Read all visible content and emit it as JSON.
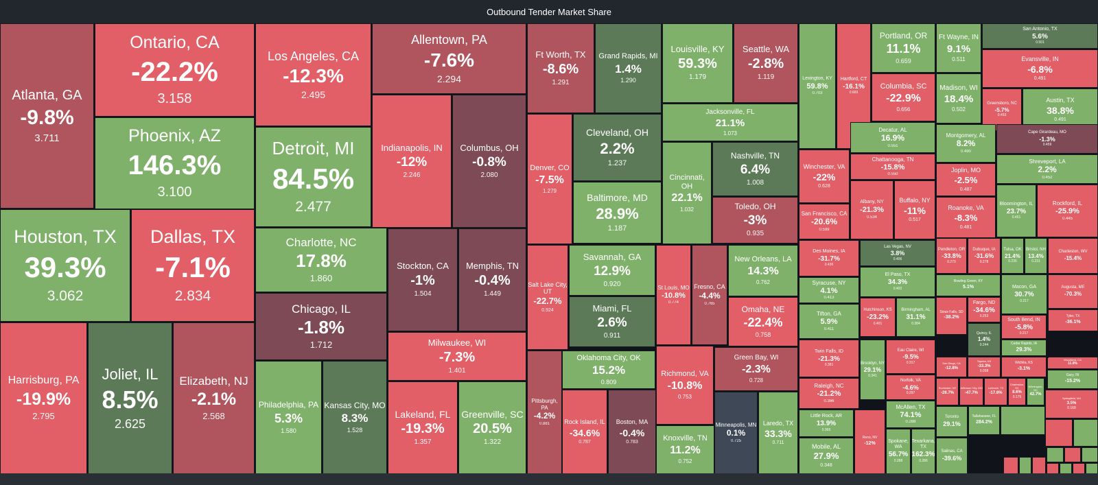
{
  "title": "Outbound Tender Market Share",
  "colors": {
    "green": "#7fb16b",
    "red": "#e25f67",
    "darkred": "#b0545d",
    "maroon": "#7d4a56",
    "darkgreen": "#5d7a58",
    "grayblue": "#3e4856"
  },
  "chart_data": {
    "type": "treemap",
    "title": "Outbound Tender Market Share",
    "tiles": [
      {
        "name": "Atlanta, GA",
        "change": "-9.8%",
        "value": "3.711"
      },
      {
        "name": "Ontario, CA",
        "change": "-22.2%",
        "value": "3.158"
      },
      {
        "name": "Phoenix, AZ",
        "change": "146.3%",
        "value": "3.100"
      },
      {
        "name": "Houston, TX",
        "change": "39.3%",
        "value": "3.062"
      },
      {
        "name": "Dallas, TX",
        "change": "-7.1%",
        "value": "2.834"
      },
      {
        "name": "Harrisburg, PA",
        "change": "-19.9%",
        "value": "2.795"
      },
      {
        "name": "Joliet, IL",
        "change": "8.5%",
        "value": "2.625"
      },
      {
        "name": "Elizabeth, NJ",
        "change": "-2.1%",
        "value": "2.568"
      },
      {
        "name": "Los Angeles, CA",
        "change": "-12.3%",
        "value": "2.495"
      },
      {
        "name": "Detroit, MI",
        "change": "84.5%",
        "value": "2.477"
      },
      {
        "name": "Charlotte, NC",
        "change": "17.8%",
        "value": "1.860"
      },
      {
        "name": "Chicago, IL",
        "change": "-1.8%",
        "value": "1.712"
      },
      {
        "name": "Philadelphia, PA",
        "change": "5.3%",
        "value": "1.580"
      },
      {
        "name": "Kansas City, MO",
        "change": "8.3%",
        "value": "1.528"
      },
      {
        "name": "Allentown, PA",
        "change": "-7.6%",
        "value": "2.294"
      },
      {
        "name": "Indianapolis, IN",
        "change": "-12%",
        "value": "2.246"
      },
      {
        "name": "Columbus, OH",
        "change": "-0.8%",
        "value": "2.080"
      },
      {
        "name": "Stockton, CA",
        "change": "-1%",
        "value": "1.504"
      },
      {
        "name": "Memphis, TN",
        "change": "-0.4%",
        "value": "1.449"
      },
      {
        "name": "Milwaukee, WI",
        "change": "-7.3%",
        "value": "1.401"
      },
      {
        "name": "Lakeland, FL",
        "change": "-19.3%",
        "value": "1.357"
      },
      {
        "name": "Greenville, SC",
        "change": "20.5%",
        "value": "1.322"
      },
      {
        "name": "Ft Worth, TX",
        "change": "-8.6%",
        "value": "1.291"
      },
      {
        "name": "Grand Rapids, MI",
        "change": "1.4%",
        "value": "1.290"
      },
      {
        "name": "Louisville, KY",
        "change": "59.3%",
        "value": "1.179"
      },
      {
        "name": "Seattle, WA",
        "change": "-2.8%",
        "value": "1.119"
      },
      {
        "name": "Jacksonville, FL",
        "change": "21.1%",
        "value": "1.073"
      },
      {
        "name": "Denver, CO",
        "change": "-7.5%",
        "value": "1.279"
      },
      {
        "name": "Cleveland, OH",
        "change": "2.2%",
        "value": "1.237"
      },
      {
        "name": "Baltimore, MD",
        "change": "28.9%",
        "value": "1.187"
      },
      {
        "name": "Cincinnati, OH",
        "change": "22.1%",
        "value": "1.032"
      },
      {
        "name": "Nashville, TN",
        "change": "6.4%",
        "value": "1.008"
      },
      {
        "name": "Toledo, OH",
        "change": "-3%",
        "value": "0.935"
      },
      {
        "name": "Salt Lake City, UT",
        "change": "-22.7%",
        "value": "0.924"
      },
      {
        "name": "Savannah, GA",
        "change": "12.9%",
        "value": "0.920"
      },
      {
        "name": "Miami, FL",
        "change": "2.6%",
        "value": "0.911"
      },
      {
        "name": "St Louis, MO",
        "change": "-10.8%",
        "value": "0.774"
      },
      {
        "name": "Fresno, CA",
        "change": "-4.4%",
        "value": "0.765"
      },
      {
        "name": "New Orleans, LA",
        "change": "14.3%",
        "value": "0.762"
      },
      {
        "name": "Omaha, NE",
        "change": "-22.4%",
        "value": "0.758"
      },
      {
        "name": "Oklahoma City, OK",
        "change": "15.2%",
        "value": "0.809"
      },
      {
        "name": "Richmond, VA",
        "change": "-10.8%",
        "value": "0.753"
      },
      {
        "name": "Green Bay, WI",
        "change": "-2.3%",
        "value": "0.728"
      },
      {
        "name": "Pittsburgh, PA",
        "change": "-4.2%",
        "value": "0.881"
      },
      {
        "name": "Rock Island, IL",
        "change": "-34.6%",
        "value": "0.787"
      },
      {
        "name": "Boston, MA",
        "change": "-0.4%",
        "value": "0.783"
      },
      {
        "name": "Knoxville, TN",
        "change": "11.2%",
        "value": "0.752"
      },
      {
        "name": "Minneapolis, MN",
        "change": "0.1%",
        "value": "0.725"
      },
      {
        "name": "Laredo, TX",
        "change": "33.3%",
        "value": "0.711"
      },
      {
        "name": "Lexington, KY",
        "change": "59.8%",
        "value": "0.703"
      },
      {
        "name": "Hartford, CT",
        "change": "-16.1%",
        "value": "0.669"
      },
      {
        "name": "Portland, OR",
        "change": "11.1%",
        "value": "0.659"
      },
      {
        "name": "Columbia, SC",
        "change": "-22.9%",
        "value": "0.656"
      },
      {
        "name": "Ft Wayne, IN",
        "change": "9.1%",
        "value": "0.511"
      },
      {
        "name": "San Antonio, TX",
        "change": "5.6%",
        "value": "0.501"
      },
      {
        "name": "Evansville, IN",
        "change": "-6.8%",
        "value": "0.491"
      },
      {
        "name": "Madison, WI",
        "change": "18.4%",
        "value": "0.502"
      },
      {
        "name": "Greensboro, NC",
        "change": "-5.7%",
        "value": "0.493"
      },
      {
        "name": "Austin, TX",
        "change": "38.8%",
        "value": "0.491"
      },
      {
        "name": "Winchester, VA",
        "change": "-22%",
        "value": "0.628"
      },
      {
        "name": "Decatur, AL",
        "change": "16.9%",
        "value": "0.551"
      },
      {
        "name": "Chattanooga, TN",
        "change": "-15.8%",
        "value": "0.550"
      },
      {
        "name": "Montgomery, AL",
        "change": "8.2%",
        "value": "0.490"
      },
      {
        "name": "Cape Girardeau, MO",
        "change": "-1.3%",
        "value": "0.459"
      },
      {
        "name": "Shreveport, LA",
        "change": "2.2%",
        "value": "0.452"
      },
      {
        "name": "San Francisco, CA",
        "change": "-20.6%",
        "value": "0.599"
      },
      {
        "name": "Albany, NY",
        "change": "-21.3%",
        "value": "0.534"
      },
      {
        "name": "Buffalo, NY",
        "change": "-11%",
        "value": "0.517"
      },
      {
        "name": "Joplin, MO",
        "change": "-2.5%",
        "value": "0.487"
      },
      {
        "name": "Roanoke, VA",
        "change": "-8.3%",
        "value": "0.481"
      },
      {
        "name": "Bloomington, IL",
        "change": "23.7%",
        "value": "0.451"
      },
      {
        "name": "Rockford, IL",
        "change": "-25.9%",
        "value": "0.445"
      },
      {
        "name": "Des Moines, IA",
        "change": "-31.7%",
        "value": "0.436"
      },
      {
        "name": "Las Vegas, NV",
        "change": "3.8%",
        "value": "0.406"
      },
      {
        "name": "El Paso, TX",
        "change": "34.3%",
        "value": "0.402"
      },
      {
        "name": "Syracuse, NY",
        "change": "4.1%",
        "value": "0.413"
      },
      {
        "name": "Hutchinson, KS",
        "change": "-23.2%",
        "value": "0.401"
      },
      {
        "name": "Birmingham, AL",
        "change": "31.1%",
        "value": "0.384"
      },
      {
        "name": "Tifton, GA",
        "change": "5.9%",
        "value": "0.411"
      },
      {
        "name": "Pendleton, OR",
        "change": "-33.8%",
        "value": "0.279"
      },
      {
        "name": "Dubuque, IA",
        "change": "-31.6%",
        "value": "0.278"
      },
      {
        "name": "Tulsa, OK",
        "change": "21.4%",
        "value": "0.235"
      },
      {
        "name": "Bristol, NH",
        "change": "13.4%",
        "value": "0.231"
      },
      {
        "name": "Charleston, WV",
        "change": "-15.4%",
        "value": ""
      },
      {
        "name": "Bowling Green, KY",
        "change": "5.1%",
        "value": ""
      },
      {
        "name": "Macon, GA",
        "change": "30.7%",
        "value": "0.217"
      },
      {
        "name": "Augusta, ME",
        "change": "-70.3%",
        "value": ""
      },
      {
        "name": "Twin Falls, ID",
        "change": "-21.3%",
        "value": "0.381"
      },
      {
        "name": "Brooklyn, NY",
        "change": "29.1%",
        "value": "0.341"
      },
      {
        "name": "Eau Claire, WI",
        "change": "-9.5%",
        "value": "0.317"
      },
      {
        "name": "Raleigh, NC",
        "change": "-21.2%",
        "value": "0.366"
      },
      {
        "name": "Norfolk, VA",
        "change": "-4.6%",
        "value": "0.297"
      },
      {
        "name": "Sioux Falls, SD",
        "change": "-38.2%",
        "value": ""
      },
      {
        "name": "Fargo, ND",
        "change": "-34.6%",
        "value": "0.253"
      },
      {
        "name": "Tyler, TX",
        "change": "-36.1%",
        "value": ""
      },
      {
        "name": "Quincy, IL",
        "change": "1.4%",
        "value": "0.244"
      },
      {
        "name": "South Bend, IN",
        "change": "-5.8%",
        "value": "0.217"
      },
      {
        "name": "Cedar Rapids, IA",
        "change": "29.3%",
        "value": ""
      },
      {
        "name": "Little Rock, AR",
        "change": "13.9%",
        "value": "0.365"
      },
      {
        "name": "McAllen, TX",
        "change": "74.1%",
        "value": "0.288"
      },
      {
        "name": "Mobile, AL",
        "change": "27.9%",
        "value": "0.348"
      },
      {
        "name": "Reno, NV",
        "change": "-12%",
        "value": ""
      },
      {
        "name": "Spokane, WA",
        "change": "56.7%",
        "value": "0.288"
      },
      {
        "name": "Texarkana, TX",
        "change": "162.3%",
        "value": "0.286"
      },
      {
        "name": "San Diego, CA",
        "change": "-12.8%",
        "value": ""
      },
      {
        "name": "Topeka, KS",
        "change": "-33.3%",
        "value": "0.058"
      },
      {
        "name": "Wichita, KS",
        "change": "-3.1%",
        "value": ""
      },
      {
        "name": "Woodland, CA",
        "change": "11.9%",
        "value": ""
      },
      {
        "name": "Gary, IN",
        "change": "-15.2%",
        "value": ""
      },
      {
        "name": "Rochester, NY",
        "change": "-26.7%",
        "value": ""
      },
      {
        "name": "Jefferson City, MO",
        "change": "-47.7%",
        "value": ""
      },
      {
        "name": "Lubbock, TX",
        "change": "-17.6%",
        "value": ""
      },
      {
        "name": "Charleston, SC",
        "change": "8.6%",
        "value": "0.175"
      },
      {
        "name": "Wilmington, NC",
        "change": "42.7%",
        "value": ""
      },
      {
        "name": "Springfield, MA",
        "change": "3.5%",
        "value": "0.168"
      },
      {
        "name": "Toronto",
        "change": "29.1%",
        "value": ""
      },
      {
        "name": "Tallahassee, FL",
        "change": "284.2%",
        "value": ""
      },
      {
        "name": "Salinas, CA",
        "change": "-39.6%",
        "value": ""
      }
    ]
  }
}
